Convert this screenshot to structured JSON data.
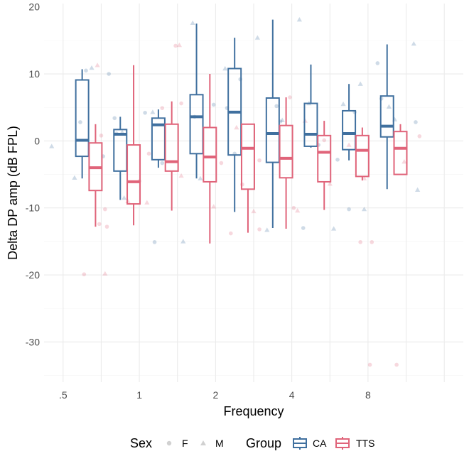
{
  "chart_data": {
    "type": "box",
    "title": "",
    "xlabel": "Frequency",
    "ylabel": "Delta DP amp (dB FPL)",
    "ylim": [
      -36,
      20.5
    ],
    "yticks": [
      -30,
      -20,
      -10,
      0,
      10,
      20
    ],
    "ytick_labels": [
      "-30",
      "-20",
      "-10",
      "0",
      "10",
      "20"
    ],
    "x_index_range": [
      0.5,
      11.5
    ],
    "x_ticks": [
      1,
      3,
      5,
      7,
      9
    ],
    "x_tick_labels": [
      ".5",
      "1",
      "2",
      "4",
      "8"
    ],
    "grid": true,
    "series_colors": {
      "CA": "#40709f",
      "TTS": "#e0647a"
    },
    "legend": {
      "position": "bottom",
      "sex_title": "Sex",
      "sex_items": [
        {
          "label": "F",
          "shape": "circle"
        },
        {
          "label": "M",
          "shape": "triangle"
        }
      ],
      "group_title": "Group",
      "group_items": [
        {
          "label": "CA",
          "key": "CA"
        },
        {
          "label": "TTS",
          "key": "TTS"
        }
      ]
    },
    "boxes": [
      {
        "group": "CA",
        "x": 1.5,
        "whisker_low": -5.6,
        "q1": -2.3,
        "median": 0.1,
        "q3": 9.1,
        "whisker_high": 10.7
      },
      {
        "group": "TTS",
        "x": 1.85,
        "whisker_low": -12.8,
        "q1": -7.4,
        "median": -4.0,
        "q3": -0.3,
        "whisker_high": 2.5
      },
      {
        "group": "CA",
        "x": 2.5,
        "whisker_low": -8.8,
        "q1": -4.5,
        "median": 1.0,
        "q3": 1.7,
        "whisker_high": 3.6
      },
      {
        "group": "TTS",
        "x": 2.85,
        "whisker_low": -12.6,
        "q1": -9.4,
        "median": -6.1,
        "q3": -0.6,
        "whisker_high": 11.3
      },
      {
        "group": "CA",
        "x": 3.5,
        "whisker_low": -4.0,
        "q1": -2.8,
        "median": 2.4,
        "q3": 3.4,
        "whisker_high": 4.7
      },
      {
        "group": "TTS",
        "x": 3.85,
        "whisker_low": -10.4,
        "q1": -4.5,
        "median": -3.1,
        "q3": 2.5,
        "whisker_high": 5.9
      },
      {
        "group": "CA",
        "x": 4.5,
        "whisker_low": -5.6,
        "q1": -1.9,
        "median": 3.6,
        "q3": 6.9,
        "whisker_high": 17.5
      },
      {
        "group": "TTS",
        "x": 4.85,
        "whisker_low": -15.3,
        "q1": -6.1,
        "median": -2.4,
        "q3": 2.0,
        "whisker_high": 10.0
      },
      {
        "group": "CA",
        "x": 5.5,
        "whisker_low": -10.6,
        "q1": -2.1,
        "median": 4.3,
        "q3": 10.8,
        "whisker_high": 15.4
      },
      {
        "group": "TTS",
        "x": 5.85,
        "whisker_low": -13.7,
        "q1": -7.2,
        "median": -1.1,
        "q3": 2.5,
        "whisker_high": 2.5
      },
      {
        "group": "CA",
        "x": 6.5,
        "whisker_low": -13.0,
        "q1": -3.2,
        "median": 1.1,
        "q3": 6.4,
        "whisker_high": 18.1
      },
      {
        "group": "TTS",
        "x": 6.85,
        "whisker_low": -13.1,
        "q1": -5.5,
        "median": -2.6,
        "q3": 2.3,
        "whisker_high": 6.5
      },
      {
        "group": "CA",
        "x": 7.5,
        "whisker_low": -1.0,
        "q1": -0.8,
        "median": 1.0,
        "q3": 5.6,
        "whisker_high": 11.4
      },
      {
        "group": "TTS",
        "x": 7.85,
        "whisker_low": -10.3,
        "q1": -6.1,
        "median": -1.7,
        "q3": 0.8,
        "whisker_high": 3.0
      },
      {
        "group": "CA",
        "x": 8.5,
        "whisker_low": -2.9,
        "q1": -1.3,
        "median": 1.1,
        "q3": 4.5,
        "whisker_high": 8.5
      },
      {
        "group": "TTS",
        "x": 8.85,
        "whisker_low": -5.9,
        "q1": -5.3,
        "median": -1.4,
        "q3": 0.8,
        "whisker_high": 2.0
      },
      {
        "group": "CA",
        "x": 9.5,
        "whisker_low": -7.2,
        "q1": 0.6,
        "median": 2.2,
        "q3": 6.7,
        "whisker_high": 14.4
      },
      {
        "group": "TTS",
        "x": 9.85,
        "whisker_low": -5.1,
        "q1": -5.0,
        "median": -1.1,
        "q3": 1.4,
        "whisker_high": 2.5
      }
    ],
    "points": [
      {
        "x": 0.7,
        "y": -0.8,
        "group": "CA",
        "sex": "M"
      },
      {
        "x": 1.3,
        "y": -5.5,
        "group": "CA",
        "sex": "M"
      },
      {
        "x": 1.6,
        "y": 10.5,
        "group": "CA",
        "sex": "F"
      },
      {
        "x": 1.75,
        "y": 10.9,
        "group": "CA",
        "sex": "M"
      },
      {
        "x": 1.45,
        "y": 2.8,
        "group": "CA",
        "sex": "F"
      },
      {
        "x": 2.05,
        "y": -2.3,
        "group": "CA",
        "sex": "F"
      },
      {
        "x": 2.2,
        "y": 10.0,
        "group": "CA",
        "sex": "F"
      },
      {
        "x": 2.35,
        "y": 3.4,
        "group": "CA",
        "sex": "F"
      },
      {
        "x": 2.55,
        "y": 1.3,
        "group": "CA",
        "sex": "M"
      },
      {
        "x": 2.6,
        "y": -8.5,
        "group": "CA",
        "sex": "M"
      },
      {
        "x": 2.4,
        "y": 1.1,
        "group": "CA",
        "sex": "F"
      },
      {
        "x": 3.15,
        "y": 4.2,
        "group": "CA",
        "sex": "F"
      },
      {
        "x": 3.4,
        "y": -15.1,
        "group": "CA",
        "sex": "F"
      },
      {
        "x": 3.35,
        "y": 4.3,
        "group": "CA",
        "sex": "M"
      },
      {
        "x": 3.6,
        "y": -3.3,
        "group": "CA",
        "sex": "F"
      },
      {
        "x": 4.15,
        "y": -15.0,
        "group": "CA",
        "sex": "M"
      },
      {
        "x": 4.4,
        "y": 17.6,
        "group": "CA",
        "sex": "M"
      },
      {
        "x": 4.45,
        "y": 3.6,
        "group": "CA",
        "sex": "F"
      },
      {
        "x": 4.6,
        "y": -5.6,
        "group": "CA",
        "sex": "M"
      },
      {
        "x": 4.95,
        "y": 5.4,
        "group": "CA",
        "sex": "F"
      },
      {
        "x": 5.25,
        "y": 10.8,
        "group": "CA",
        "sex": "M"
      },
      {
        "x": 5.3,
        "y": 4.9,
        "group": "CA",
        "sex": "F"
      },
      {
        "x": 5.5,
        "y": -1.9,
        "group": "CA",
        "sex": "F"
      },
      {
        "x": 5.65,
        "y": 9.2,
        "group": "CA",
        "sex": "F"
      },
      {
        "x": 6.1,
        "y": 15.4,
        "group": "CA",
        "sex": "M"
      },
      {
        "x": 6.35,
        "y": -13.3,
        "group": "CA",
        "sex": "M"
      },
      {
        "x": 6.6,
        "y": 5.2,
        "group": "CA",
        "sex": "F"
      },
      {
        "x": 6.7,
        "y": 2.9,
        "group": "CA",
        "sex": "F"
      },
      {
        "x": 6.75,
        "y": 3.1,
        "group": "CA",
        "sex": "M"
      },
      {
        "x": 7.2,
        "y": 18.1,
        "group": "CA",
        "sex": "M"
      },
      {
        "x": 7.3,
        "y": -13.0,
        "group": "CA",
        "sex": "F"
      },
      {
        "x": 7.45,
        "y": 5.6,
        "group": "CA",
        "sex": "M"
      },
      {
        "x": 7.7,
        "y": -0.6,
        "group": "CA",
        "sex": "F"
      },
      {
        "x": 8.1,
        "y": -13.1,
        "group": "CA",
        "sex": "M"
      },
      {
        "x": 8.2,
        "y": -2.8,
        "group": "CA",
        "sex": "F"
      },
      {
        "x": 8.35,
        "y": 5.5,
        "group": "CA",
        "sex": "M"
      },
      {
        "x": 8.5,
        "y": -10.2,
        "group": "CA",
        "sex": "F"
      },
      {
        "x": 8.65,
        "y": 4.3,
        "group": "CA",
        "sex": "F"
      },
      {
        "x": 8.9,
        "y": -10.2,
        "group": "CA",
        "sex": "M"
      },
      {
        "x": 8.8,
        "y": 8.5,
        "group": "CA",
        "sex": "M"
      },
      {
        "x": 9.25,
        "y": 11.6,
        "group": "CA",
        "sex": "F"
      },
      {
        "x": 9.35,
        "y": 6.3,
        "group": "CA",
        "sex": "F"
      },
      {
        "x": 9.55,
        "y": 5.1,
        "group": "CA",
        "sex": "M"
      },
      {
        "x": 9.7,
        "y": 3.2,
        "group": "CA",
        "sex": "M"
      },
      {
        "x": 10.2,
        "y": 14.5,
        "group": "CA",
        "sex": "M"
      },
      {
        "x": 10.25,
        "y": 2.8,
        "group": "CA",
        "sex": "F"
      },
      {
        "x": 10.3,
        "y": -7.3,
        "group": "CA",
        "sex": "M"
      },
      {
        "x": 1.9,
        "y": 11.3,
        "group": "TTS",
        "sex": "M"
      },
      {
        "x": 2.0,
        "y": 0.8,
        "group": "TTS",
        "sex": "F"
      },
      {
        "x": 2.15,
        "y": -12.8,
        "group": "TTS",
        "sex": "F"
      },
      {
        "x": 1.95,
        "y": -12.4,
        "group": "TTS",
        "sex": "F"
      },
      {
        "x": 1.55,
        "y": -19.9,
        "group": "TTS",
        "sex": "F"
      },
      {
        "x": 2.1,
        "y": -19.8,
        "group": "TTS",
        "sex": "M"
      },
      {
        "x": 2.1,
        "y": -10.2,
        "group": "TTS",
        "sex": "F"
      },
      {
        "x": 2.7,
        "y": -9.0,
        "group": "TTS",
        "sex": "M"
      },
      {
        "x": 3.0,
        "y": -6.0,
        "group": "TTS",
        "sex": "F"
      },
      {
        "x": 3.2,
        "y": -9.2,
        "group": "TTS",
        "sex": "M"
      },
      {
        "x": 3.25,
        "y": -1.9,
        "group": "TTS",
        "sex": "F"
      },
      {
        "x": 3.6,
        "y": 4.9,
        "group": "TTS",
        "sex": "F"
      },
      {
        "x": 3.95,
        "y": 14.2,
        "group": "TTS",
        "sex": "F"
      },
      {
        "x": 4.05,
        "y": 14.3,
        "group": "TTS",
        "sex": "M"
      },
      {
        "x": 4.1,
        "y": -5.2,
        "group": "TTS",
        "sex": "M"
      },
      {
        "x": 4.1,
        "y": 5.6,
        "group": "TTS",
        "sex": "F"
      },
      {
        "x": 4.95,
        "y": -9.8,
        "group": "TTS",
        "sex": "M"
      },
      {
        "x": 5.15,
        "y": -3.3,
        "group": "TTS",
        "sex": "F"
      },
      {
        "x": 5.4,
        "y": -13.8,
        "group": "TTS",
        "sex": "F"
      },
      {
        "x": 5.55,
        "y": 2.0,
        "group": "TTS",
        "sex": "M"
      },
      {
        "x": 5.7,
        "y": -6.5,
        "group": "TTS",
        "sex": "F"
      },
      {
        "x": 6.0,
        "y": -10.5,
        "group": "TTS",
        "sex": "M"
      },
      {
        "x": 6.15,
        "y": -13.2,
        "group": "TTS",
        "sex": "F"
      },
      {
        "x": 6.15,
        "y": -2.9,
        "group": "TTS",
        "sex": "F"
      },
      {
        "x": 6.95,
        "y": 6.5,
        "group": "TTS",
        "sex": "F"
      },
      {
        "x": 7.05,
        "y": -10.0,
        "group": "TTS",
        "sex": "F"
      },
      {
        "x": 7.15,
        "y": -10.4,
        "group": "TTS",
        "sex": "M"
      },
      {
        "x": 7.35,
        "y": 3.0,
        "group": "TTS",
        "sex": "M"
      },
      {
        "x": 7.85,
        "y": 0.1,
        "group": "TTS",
        "sex": "F"
      },
      {
        "x": 8.0,
        "y": -6.4,
        "group": "TTS",
        "sex": "M"
      },
      {
        "x": 8.5,
        "y": -0.6,
        "group": "TTS",
        "sex": "M"
      },
      {
        "x": 8.8,
        "y": -15.1,
        "group": "TTS",
        "sex": "F"
      },
      {
        "x": 8.9,
        "y": -5.6,
        "group": "TTS",
        "sex": "M"
      },
      {
        "x": 9.1,
        "y": -15.1,
        "group": "TTS",
        "sex": "F"
      },
      {
        "x": 9.05,
        "y": -33.4,
        "group": "TTS",
        "sex": "F"
      },
      {
        "x": 9.75,
        "y": -33.4,
        "group": "TTS",
        "sex": "F"
      },
      {
        "x": 9.95,
        "y": -3.1,
        "group": "TTS",
        "sex": "M"
      },
      {
        "x": 10.35,
        "y": 0.7,
        "group": "TTS",
        "sex": "F"
      }
    ]
  }
}
